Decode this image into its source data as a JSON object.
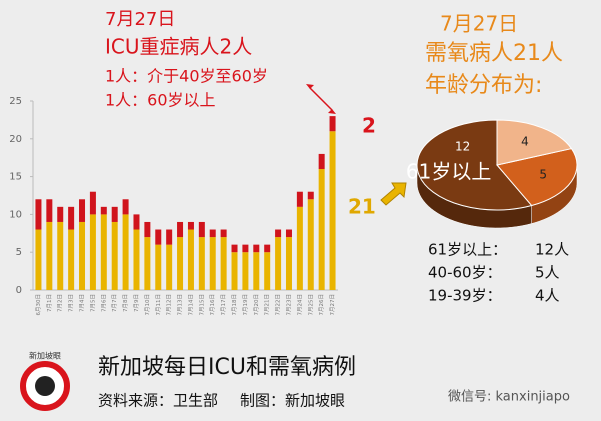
{
  "chart_data": [
    {
      "type": "stacked-bar",
      "header_lines": [
        "7月27日",
        "ICU重症病人2人",
        "1人：介于40岁至60岁",
        "1人：60岁以上"
      ],
      "annotations": [
        "2",
        "21"
      ],
      "categories": [
        "6月30日",
        "7月1日",
        "7月2日",
        "7月3日",
        "7月4日",
        "7月5日",
        "7月6日",
        "7月7日",
        "7月8日",
        "7月9日",
        "7月10日",
        "7月11日",
        "7月12日",
        "7月13日",
        "7月14日",
        "7月15日",
        "7月16日",
        "7月17日",
        "7月18日",
        "7月19日",
        "7月20日",
        "7月21日",
        "7月22日",
        "7月23日",
        "7月24日",
        "7月25日",
        "7月26日",
        "7月27日"
      ],
      "series": [
        {
          "color": "#e9b400",
          "values": [
            8,
            9,
            9,
            8,
            9,
            10,
            10,
            9,
            10,
            8,
            7,
            6,
            6,
            7,
            8,
            7,
            7,
            7,
            5,
            5,
            5,
            5,
            7,
            7,
            11,
            12,
            16,
            21
          ]
        },
        {
          "color": "#d0141c",
          "values": [
            4,
            3,
            2,
            3,
            3,
            3,
            1,
            2,
            2,
            2,
            2,
            2,
            2,
            2,
            1,
            2,
            1,
            1,
            1,
            1,
            1,
            1,
            1,
            1,
            2,
            1,
            2,
            2
          ]
        }
      ],
      "ylim": [
        0,
        25
      ],
      "yticks": [
        0,
        5,
        10,
        15,
        20,
        25
      ]
    },
    {
      "type": "pie",
      "title_lines": [
        "7月27日",
        "需氧病人21人",
        "年龄分布为:"
      ],
      "categories": [
        "61岁以上",
        "40-60岁",
        "19-39岁"
      ],
      "values": [
        12,
        5,
        4
      ],
      "colors": [
        "#7a3a12",
        "#d2601c",
        "#f1b48a"
      ],
      "list_labels": [
        "61岁以上：",
        "40-60岁：",
        "19-39岁："
      ],
      "value_labels": [
        "12人",
        "5人",
        "4人"
      ]
    }
  ],
  "footer": {
    "title": "新加坡每日ICU和需氧病例",
    "source": "资料来源：卫生部",
    "maker": "制图：新加坡眼",
    "wechat": "微信号: kanxinjiapo",
    "logo": "新加坡眼"
  }
}
